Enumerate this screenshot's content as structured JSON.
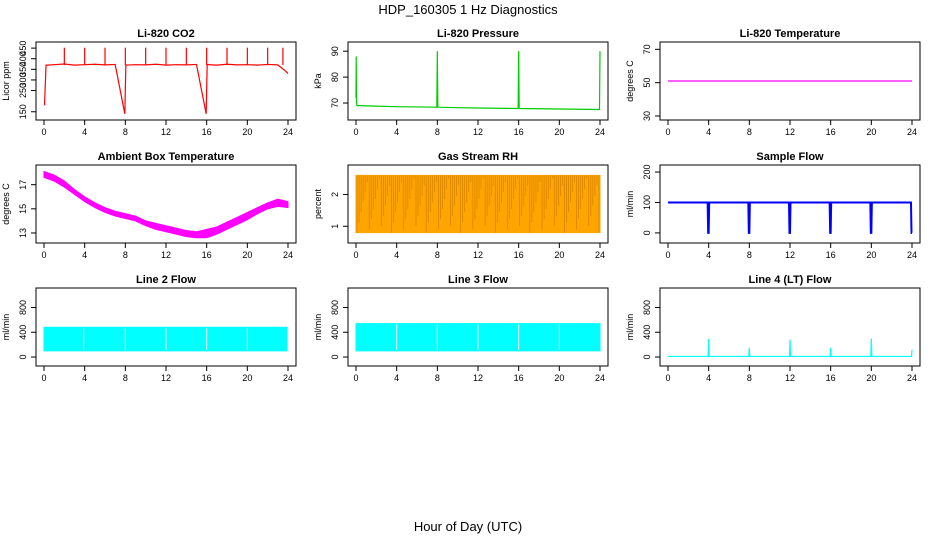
{
  "title": "HDP_160305  1 Hz Diagnostics",
  "xlabel": "Hour of Day (UTC)",
  "chart_data": [
    {
      "type": "line",
      "title": "Li-820 CO2",
      "ylabel": "Licor ppm",
      "color": "#ff0000",
      "xlim": [
        0,
        24
      ],
      "ylim": [
        130,
        460
      ],
      "yticks": [
        150,
        250,
        300,
        350,
        400,
        450
      ],
      "xticks": [
        0,
        4,
        8,
        12,
        16,
        20,
        24
      ],
      "series": [
        {
          "x": [
            0.05,
            0.2,
            0.3,
            1,
            2,
            3,
            4,
            5,
            6,
            7,
            7.95,
            8.05,
            9,
            10,
            11,
            12,
            13,
            14,
            15,
            15.95,
            16.05,
            17,
            18,
            19,
            20,
            21,
            22,
            23,
            23.8,
            24
          ],
          "y": [
            180,
            370,
            370,
            372,
            375,
            370,
            372,
            374,
            371,
            373,
            140,
            370,
            372,
            371,
            374,
            370,
            372,
            371,
            373,
            140,
            372,
            370,
            374,
            371,
            372,
            370,
            373,
            371,
            340,
            330
          ]
        }
      ],
      "spikes_up_at": [
        2,
        4,
        6,
        8,
        10,
        12,
        14,
        16,
        18,
        20,
        22,
        23.5
      ]
    },
    {
      "type": "line",
      "title": "Li-820 Pressure",
      "ylabel": "kPa",
      "color": "#00cc00",
      "xlim": [
        0,
        24
      ],
      "ylim": [
        65,
        92
      ],
      "yticks": [
        70,
        80,
        90
      ],
      "xticks": [
        0,
        4,
        8,
        12,
        16,
        20,
        24
      ],
      "series": [
        {
          "x": [
            0,
            0.02,
            0.05,
            0.1,
            0.3,
            2,
            4,
            6,
            7.95,
            8,
            8.05,
            10,
            12,
            14,
            15.95,
            16,
            16.05,
            18,
            20,
            22,
            23.95,
            24
          ],
          "y": [
            72,
            88,
            70,
            69,
            69,
            68.8,
            68.6,
            68.5,
            68.4,
            90,
            68.4,
            68.2,
            68.1,
            68.0,
            67.9,
            90,
            67.9,
            67.8,
            67.7,
            67.6,
            67.5,
            90
          ]
        }
      ]
    },
    {
      "type": "line",
      "title": "Li-820 Temperature",
      "ylabel": "degrees C",
      "color": "#ff00ff",
      "xlim": [
        0,
        24
      ],
      "ylim": [
        30,
        72
      ],
      "yticks": [
        30,
        50,
        70
      ],
      "xticks": [
        0,
        4,
        8,
        12,
        16,
        20,
        24
      ],
      "series": [
        {
          "x": [
            0,
            24
          ],
          "y": [
            51,
            51
          ]
        }
      ]
    },
    {
      "type": "area",
      "title": "Ambient Box Temperature",
      "ylabel": "degrees C",
      "color": "#ff00ff",
      "xlim": [
        0,
        24
      ],
      "ylim": [
        12.5,
        18.3
      ],
      "yticks": [
        13,
        15,
        17
      ],
      "xticks": [
        0,
        4,
        8,
        12,
        16,
        20,
        24
      ],
      "series": [
        {
          "x": [
            0,
            1,
            2,
            3,
            4,
            5,
            6,
            7,
            8,
            9,
            10,
            11,
            12,
            13,
            14,
            15,
            16,
            17,
            18,
            19,
            20,
            21,
            22,
            23,
            24
          ],
          "low": [
            17.6,
            17.3,
            16.8,
            16.2,
            15.6,
            15.1,
            14.7,
            14.4,
            14.2,
            14.0,
            13.6,
            13.3,
            13.1,
            12.9,
            12.7,
            12.6,
            12.6,
            12.9,
            13.3,
            13.7,
            14.1,
            14.6,
            15.0,
            15.2,
            15.1
          ],
          "high": [
            18.1,
            17.8,
            17.3,
            16.6,
            16.0,
            15.5,
            15.1,
            14.8,
            14.6,
            14.4,
            14.0,
            13.8,
            13.6,
            13.4,
            13.2,
            13.1,
            13.3,
            13.5,
            13.9,
            14.3,
            14.7,
            15.1,
            15.5,
            15.8,
            15.6
          ]
        }
      ]
    },
    {
      "type": "area",
      "title": "Gas Stream RH",
      "ylabel": "percent",
      "color": "#ffa500",
      "xlim": [
        0,
        24
      ],
      "ylim": [
        0.6,
        2.8
      ],
      "yticks": [
        1.0,
        2.0
      ],
      "xticks": [
        0,
        4,
        8,
        12,
        16,
        20,
        24
      ],
      "series": [
        {
          "x": [
            0,
            24
          ],
          "low": [
            0.8,
            0.8
          ],
          "high": [
            2.6,
            2.6
          ]
        }
      ]
    },
    {
      "type": "line",
      "title": "Sample Flow",
      "ylabel": "ml/min",
      "color": "#0000ff",
      "xlim": [
        0,
        24
      ],
      "ylim": [
        -20,
        210
      ],
      "yticks": [
        0,
        100,
        200
      ],
      "xticks": [
        0,
        4,
        8,
        12,
        16,
        20,
        24
      ],
      "series": [
        {
          "x": [
            0,
            2,
            3.9,
            3.95,
            4.0,
            4.05,
            6,
            7.9,
            7.95,
            8.0,
            8.05,
            10,
            11.9,
            11.95,
            12.0,
            12.05,
            14,
            15.9,
            15.95,
            16.0,
            16.05,
            18,
            19.9,
            19.95,
            20.0,
            20.05,
            22,
            23.9,
            23.95,
            24
          ],
          "y": [
            100,
            100,
            100,
            0,
            0,
            100,
            100,
            100,
            0,
            0,
            100,
            100,
            100,
            0,
            0,
            100,
            100,
            100,
            0,
            0,
            100,
            100,
            100,
            0,
            0,
            100,
            100,
            100,
            0,
            0
          ]
        }
      ]
    },
    {
      "type": "area",
      "title": "Line 2 Flow",
      "ylabel": "ml/min",
      "color": "#00ffff",
      "xlim": [
        0,
        24
      ],
      "ylim": [
        -80,
        1050
      ],
      "yticks": [
        0,
        400,
        800
      ],
      "xticks": [
        0,
        4,
        8,
        12,
        16,
        20,
        24
      ],
      "series": [
        {
          "x": [
            0,
            23.9
          ],
          "low": [
            100,
            100
          ],
          "high": [
            480,
            480
          ]
        }
      ],
      "gaps_at": [
        3.9,
        8,
        12,
        16,
        20
      ]
    },
    {
      "type": "area",
      "title": "Line 3 Flow",
      "ylabel": "ml/min",
      "color": "#00ffff",
      "xlim": [
        0,
        24
      ],
      "ylim": [
        -80,
        1050
      ],
      "yticks": [
        0,
        400,
        800
      ],
      "xticks": [
        0,
        4,
        8,
        12,
        16,
        20,
        24
      ],
      "series": [
        {
          "x": [
            0,
            24
          ],
          "low": [
            100,
            100
          ],
          "high": [
            540,
            540
          ]
        }
      ],
      "gaps_at": [
        4,
        8,
        12,
        16,
        20
      ]
    },
    {
      "type": "line",
      "title": "Line 4 (LT) Flow",
      "ylabel": "ml/min",
      "color": "#00ffff",
      "xlim": [
        0,
        24
      ],
      "ylim": [
        -80,
        1050
      ],
      "yticks": [
        0,
        400,
        800
      ],
      "xticks": [
        0,
        4,
        8,
        12,
        16,
        20,
        24
      ],
      "series": [
        {
          "x": [
            0,
            3.95,
            4.0,
            4.05,
            7.95,
            8.0,
            8.05,
            11.95,
            12.0,
            12.05,
            15.95,
            16.0,
            16.05,
            19.95,
            20.0,
            20.05,
            23.95,
            24
          ],
          "y": [
            10,
            10,
            290,
            10,
            10,
            150,
            10,
            10,
            280,
            10,
            10,
            150,
            10,
            10,
            300,
            10,
            10,
            120
          ]
        }
      ]
    }
  ]
}
